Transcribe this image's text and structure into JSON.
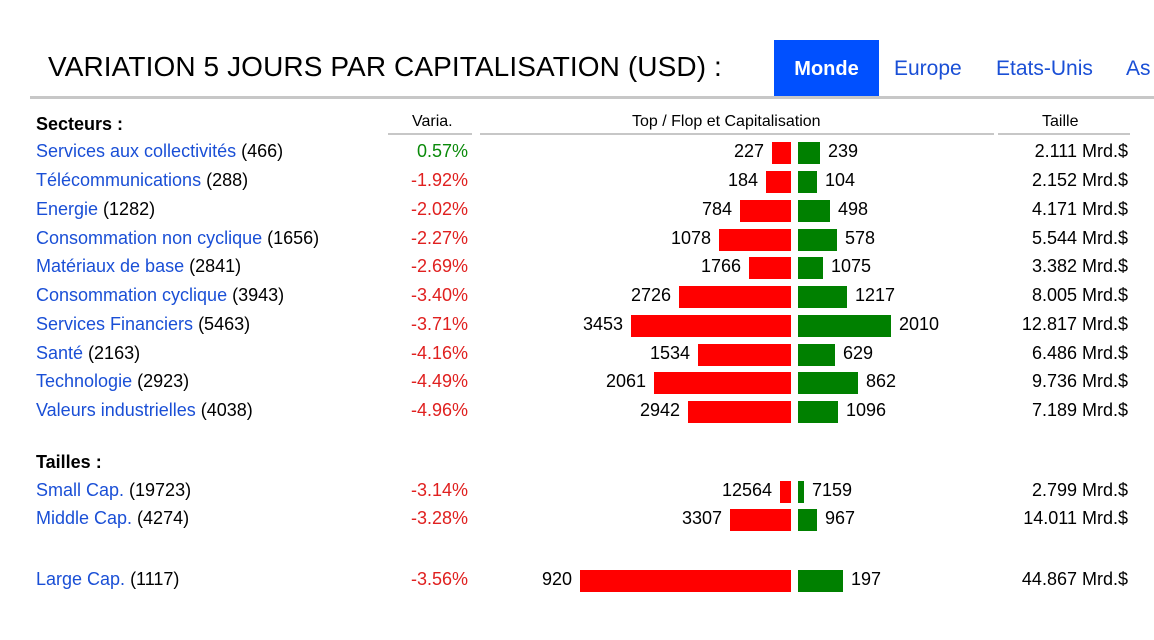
{
  "header": {
    "title": "VARIATION 5 JOURS PAR CAPITALISATION (USD) :",
    "tabs": [
      {
        "label": "Monde",
        "active": true
      },
      {
        "label": "Europe",
        "active": false
      },
      {
        "label": "Etats-Unis",
        "active": false
      },
      {
        "label": "As",
        "active": false
      }
    ]
  },
  "columns": {
    "sectors": "Secteurs :",
    "variation": "Varia.",
    "topflop": "Top / Flop et Capitalisation",
    "size": "Taille"
  },
  "sizes_title": "Tailles :",
  "colors": {
    "accent": "#0050ff",
    "link": "#1a4fd6",
    "negative": "#e0201f",
    "positive": "#0a8a0a",
    "flop_bar": "#ff0000",
    "top_bar": "#008000"
  },
  "sectors": [
    {
      "label": "Services aux collectivités",
      "count": "(466)",
      "variation": "0.57%",
      "positive": true,
      "flop": "227",
      "top": "239",
      "size": "2.111 Mrd.$",
      "flop_bar_frac": 0.09,
      "top_bar_frac": 0.24
    },
    {
      "label": "Télécommunications",
      "count": "(288)",
      "variation": "-1.92%",
      "positive": false,
      "flop": "184",
      "top": "104",
      "size": "2.152 Mrd.$",
      "flop_bar_frac": 0.12,
      "top_bar_frac": 0.2
    },
    {
      "label": "Energie",
      "count": "(1282)",
      "variation": "-2.02%",
      "positive": false,
      "flop": "784",
      "top": "498",
      "size": "4.171 Mrd.$",
      "flop_bar_frac": 0.24,
      "top_bar_frac": 0.34
    },
    {
      "label": "Consommation non cyclique",
      "count": "(1656)",
      "variation": "-2.27%",
      "positive": false,
      "flop": "1078",
      "top": "578",
      "size": "5.544 Mrd.$",
      "flop_bar_frac": 0.34,
      "top_bar_frac": 0.42
    },
    {
      "label": "Matériaux de base",
      "count": "(2841)",
      "variation": "-2.69%",
      "positive": false,
      "flop": "1766",
      "top": "1075",
      "size": "3.382 Mrd.$",
      "flop_bar_frac": 0.2,
      "top_bar_frac": 0.27
    },
    {
      "label": "Consommation cyclique",
      "count": "(3943)",
      "variation": "-3.40%",
      "positive": false,
      "flop": "2726",
      "top": "1217",
      "size": "8.005 Mrd.$",
      "flop_bar_frac": 0.53,
      "top_bar_frac": 0.53
    },
    {
      "label": "Services Financiers",
      "count": "(5463)",
      "variation": "-3.71%",
      "positive": false,
      "flop": "3453",
      "top": "2010",
      "size": "12.817 Mrd.$",
      "flop_bar_frac": 0.76,
      "top_bar_frac": 1.0
    },
    {
      "label": "Santé",
      "count": "(2163)",
      "variation": "-4.16%",
      "positive": false,
      "flop": "1534",
      "top": "629",
      "size": "6.486 Mrd.$",
      "flop_bar_frac": 0.44,
      "top_bar_frac": 0.4
    },
    {
      "label": "Technologie",
      "count": "(2923)",
      "variation": "-4.49%",
      "positive": false,
      "flop": "2061",
      "top": "862",
      "size": "9.736 Mrd.$",
      "flop_bar_frac": 0.65,
      "top_bar_frac": 0.64
    },
    {
      "label": "Valeurs industrielles",
      "count": "(4038)",
      "variation": "-4.96%",
      "positive": false,
      "flop": "2942",
      "top": "1096",
      "size": "7.189 Mrd.$",
      "flop_bar_frac": 0.49,
      "top_bar_frac": 0.43
    }
  ],
  "sizes": [
    {
      "label": "Small Cap.",
      "count": "(19723)",
      "variation": "-3.14%",
      "positive": false,
      "flop": "12564",
      "top": "7159",
      "size": "2.799 Mrd.$",
      "flop_bar_frac": 0.05,
      "top_bar_frac": 0.06
    },
    {
      "label": "Middle Cap.",
      "count": "(4274)",
      "variation": "-3.28%",
      "positive": false,
      "flop": "3307",
      "top": "967",
      "size": "14.011 Mrd.$",
      "flop_bar_frac": 0.29,
      "top_bar_frac": 0.2
    },
    {
      "label": "Large Cap.",
      "count": "(1117)",
      "variation": "-3.56%",
      "positive": false,
      "flop": "920",
      "top": "197",
      "size": "44.867 Mrd.$",
      "flop_bar_frac": 1.0,
      "top_bar_frac": 0.48
    }
  ]
}
